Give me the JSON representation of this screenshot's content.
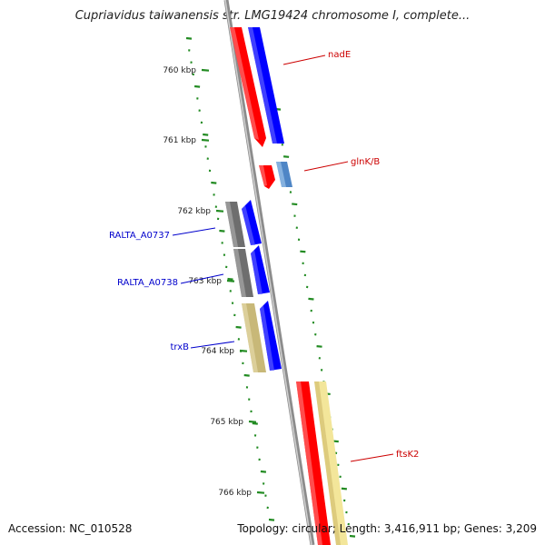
{
  "header": {
    "title": "Cupriavidus taiwanensis str. LMG19424 chromosome I, complete..."
  },
  "footer": {
    "accession": "Accession: NC_010528",
    "summary": "Topology: circular; Length: 3,416,911 bp; Genes: 3,209"
  },
  "ticks": [
    "760 kbp",
    "761 kbp",
    "762 kbp",
    "763 kbp",
    "764 kbp",
    "765 kbp",
    "766 kbp"
  ],
  "genes": [
    {
      "label": "nadE",
      "color": "#cc0000"
    },
    {
      "label": "glnK/B",
      "color": "#cc0000"
    },
    {
      "label": "RALTA_A0737",
      "color": "#0000cc"
    },
    {
      "label": "RALTA_A0738",
      "color": "#0000cc"
    },
    {
      "label": "trxB",
      "color": "#0000cc"
    },
    {
      "label": "ftsK2",
      "color": "#cc0000"
    }
  ],
  "colors": {
    "red": "#ff0000",
    "blue": "#0000ff",
    "steelblue": "#5b9bd5",
    "gray": "#6e6e6e",
    "olive": "#c8b878",
    "lightyellow": "#f3e69a",
    "tick": "#228b22",
    "backbone": "#8c8c8c"
  }
}
